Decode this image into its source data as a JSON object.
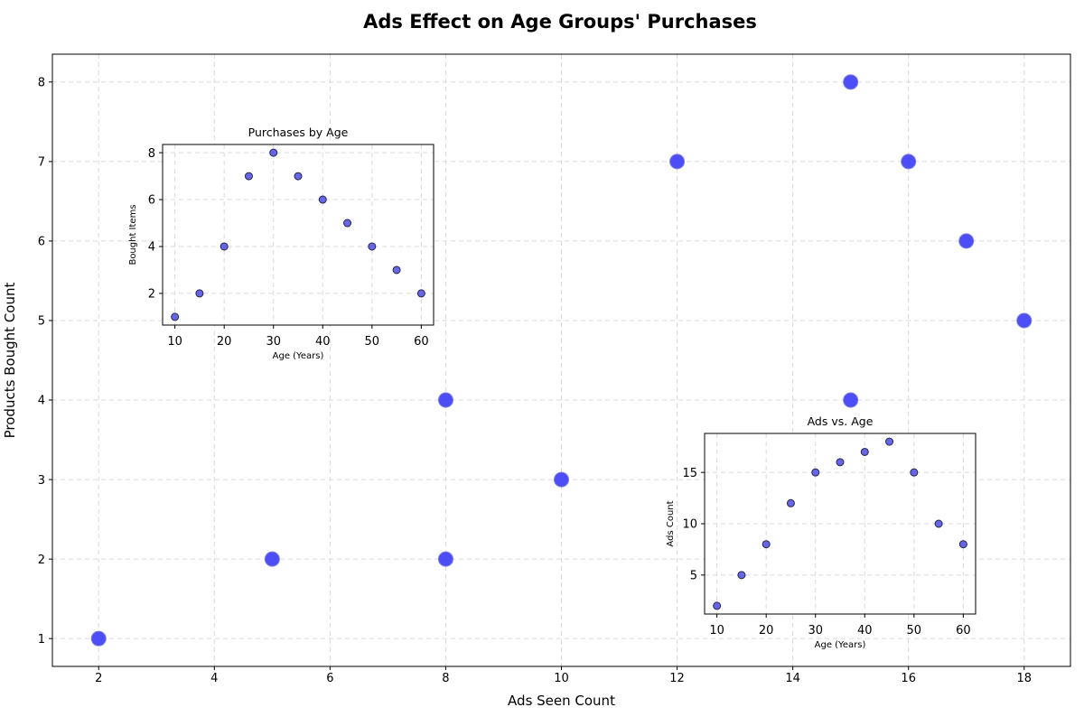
{
  "colors": {
    "main_point_fill": "#3b3bf5",
    "main_point_stroke": "#7a7ae8",
    "inset_point_fill": "#5e5ee6",
    "inset_point_stroke": "#262650",
    "grid": "#d9d9d9",
    "axis": "#000000"
  },
  "chart_data": [
    {
      "id": "main",
      "type": "scatter",
      "title": "Ads Effect on Age Groups' Purchases",
      "xlabel": "Ads Seen Count",
      "ylabel": "Products Bought Count",
      "xlim": [
        1.2,
        18.8
      ],
      "ylim": [
        0.65,
        8.35
      ],
      "xticks": [
        2,
        4,
        6,
        8,
        10,
        12,
        14,
        16,
        18
      ],
      "yticks": [
        1,
        2,
        3,
        4,
        5,
        6,
        7,
        8
      ],
      "grid": true,
      "x": [
        2,
        5,
        8,
        12,
        15,
        16,
        17,
        18,
        15,
        10,
        8
      ],
      "y": [
        1,
        2,
        4,
        7,
        8,
        7,
        6,
        5,
        4,
        3,
        2
      ]
    },
    {
      "id": "inset_age_purchases",
      "type": "scatter",
      "title": "Purchases by Age",
      "xlabel": "Age (Years)",
      "ylabel": "Bought Items",
      "xlim": [
        7.5,
        62.5
      ],
      "ylim": [
        0.65,
        8.35
      ],
      "xticks": [
        10,
        20,
        30,
        40,
        50,
        60
      ],
      "yticks": [
        2,
        4,
        6,
        8
      ],
      "grid": true,
      "x": [
        10,
        15,
        20,
        25,
        30,
        35,
        40,
        45,
        50,
        55,
        60
      ],
      "y": [
        1,
        2,
        4,
        7,
        8,
        7,
        6,
        5,
        4,
        3,
        2
      ]
    },
    {
      "id": "inset_ads_age",
      "type": "scatter",
      "title": "Ads vs. Age",
      "xlabel": "Age (Years)",
      "ylabel": "Ads Count",
      "xlim": [
        7.5,
        62.5
      ],
      "ylim": [
        1.2,
        18.8
      ],
      "xticks": [
        10,
        20,
        30,
        40,
        50,
        60
      ],
      "yticks": [
        5,
        10,
        15
      ],
      "grid": true,
      "x": [
        10,
        15,
        20,
        25,
        30,
        35,
        40,
        45,
        50,
        55,
        60
      ],
      "y": [
        2,
        5,
        8,
        12,
        15,
        16,
        17,
        18,
        15,
        10,
        8
      ]
    }
  ]
}
